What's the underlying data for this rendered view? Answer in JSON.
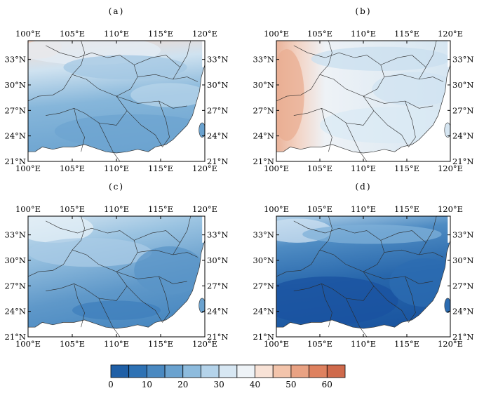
{
  "panels": [
    {
      "label": "(a)",
      "x_ticks": [
        "100°E",
        "105°E",
        "110°E",
        "115°E",
        "120°E"
      ],
      "y_ticks": [
        "33°N",
        "30°N",
        "27°N",
        "24°N",
        "21°N"
      ]
    },
    {
      "label": "(b)",
      "x_ticks": [
        "100°E",
        "105°E",
        "110°E",
        "115°E",
        "120°E"
      ],
      "y_ticks": [
        "33°N",
        "30°N",
        "27°N",
        "24°N",
        "21°N"
      ]
    },
    {
      "label": "(c)",
      "x_ticks": [
        "100°E",
        "105°E",
        "110°E",
        "115°E",
        "120°E"
      ],
      "y_ticks": [
        "33°N",
        "30°N",
        "27°N",
        "24°N",
        "21°N"
      ]
    },
    {
      "label": "(d)",
      "x_ticks": [
        "100°E",
        "105°E",
        "110°E",
        "115°E",
        "120°E"
      ],
      "y_ticks": [
        "33°N",
        "30°N",
        "27°N",
        "24°N",
        "21°N"
      ]
    }
  ],
  "colorbar": {
    "min": 0,
    "max": 65,
    "step": 5,
    "labels": [
      "0",
      "10",
      "20",
      "30",
      "40",
      "50",
      "60"
    ],
    "colors": [
      "#1f5fa6",
      "#2e72b4",
      "#4a89c1",
      "#6aa2cf",
      "#8dbbdd",
      "#b4d3ea",
      "#d7e7f3",
      "#eef3f7",
      "#f8e2d6",
      "#f3c4ab",
      "#e9a283",
      "#de815f",
      "#cf6a4c"
    ]
  }
}
